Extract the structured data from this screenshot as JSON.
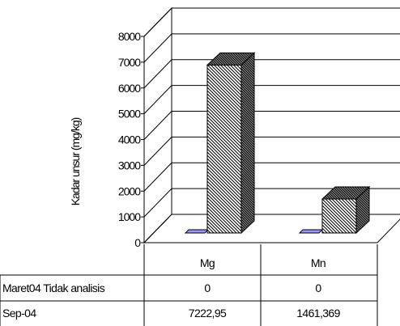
{
  "chart_data": {
    "type": "bar",
    "ylabel": "Kadar unsur (mg/kg)",
    "ylim": [
      0,
      8000
    ],
    "yticks": [
      "8000",
      "7000",
      "6000",
      "5000",
      "4000",
      "3000",
      "2000",
      "1000",
      "0"
    ],
    "ytick_values": [
      8000,
      7000,
      6000,
      5000,
      4000,
      3000,
      2000,
      1000,
      0
    ],
    "categories": [
      "Mg",
      "Mn"
    ],
    "series": [
      {
        "name": "Maret04 Tidak analisis",
        "values": [
          0,
          0
        ],
        "labels": [
          "0",
          "0"
        ],
        "color": "#9999ff"
      },
      {
        "name": "Sep-04",
        "values": [
          7222.95,
          1461.369
        ],
        "labels": [
          "7222,95",
          "1461,369"
        ],
        "color": "#ffffff"
      }
    ],
    "grid": true,
    "legend": "data table below chart"
  }
}
